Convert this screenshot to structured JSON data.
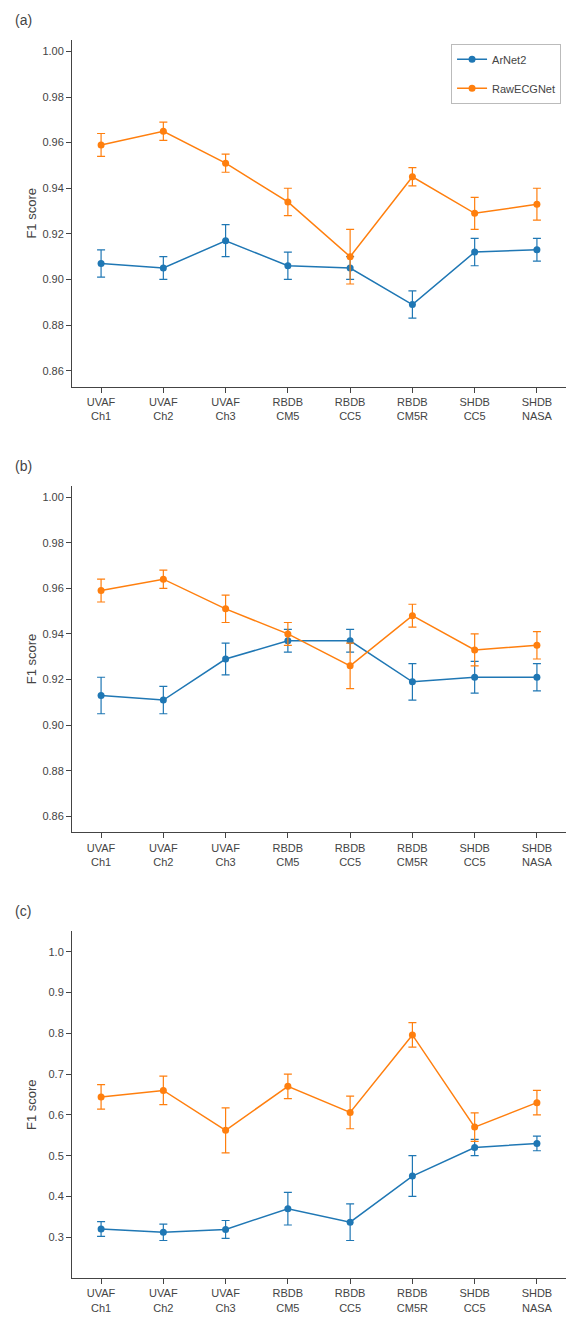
{
  "chart_data": [
    {
      "type": "line",
      "title": "(a)",
      "ylabel": "F1 score",
      "categories": [
        "UVAF\nCh1",
        "UVAF\nCh2",
        "UVAF\nCh3",
        "RBDB\nCM5",
        "RBDB\nCC5",
        "RBDB\nCM5R",
        "SHDB\nCC5",
        "SHDB\nNASA"
      ],
      "series": [
        {
          "name": "ArNet2",
          "color": "#1f77b4",
          "marker": "circle",
          "values": [
            0.907,
            0.905,
            0.917,
            0.906,
            0.905,
            0.889,
            0.912,
            0.913
          ],
          "error": [
            0.006,
            0.005,
            0.007,
            0.006,
            0.005,
            0.006,
            0.006,
            0.005
          ]
        },
        {
          "name": "RawECGNet",
          "color": "#ff7f0e",
          "marker": "circle",
          "values": [
            0.959,
            0.965,
            0.951,
            0.934,
            0.91,
            0.945,
            0.929,
            0.933
          ],
          "error": [
            0.005,
            0.004,
            0.004,
            0.006,
            0.012,
            0.004,
            0.007,
            0.007
          ]
        }
      ],
      "ylim": [
        0.853,
        1.005
      ],
      "yticks": [
        0.86,
        0.88,
        {
          "value": 0.9,
          "label": "0.90"
        },
        0.92,
        0.94,
        0.96,
        0.98,
        {
          "value": 1.0,
          "label": "1.00"
        }
      ],
      "grid": false,
      "legend": "upper right"
    },
    {
      "type": "line",
      "title": "(b)",
      "ylabel": "F1 score",
      "categories": [
        "UVAF\nCh1",
        "UVAF\nCh2",
        "UVAF\nCh3",
        "RBDB\nCM5",
        "RBDB\nCC5",
        "RBDB\nCM5R",
        "SHDB\nCC5",
        "SHDB\nNASA"
      ],
      "series": [
        {
          "name": "ArNet2",
          "color": "#1f77b4",
          "marker": "circle",
          "values": [
            0.913,
            0.911,
            0.929,
            0.937,
            0.937,
            0.919,
            0.921,
            0.921
          ],
          "error": [
            0.008,
            0.006,
            0.007,
            0.005,
            0.005,
            0.008,
            0.007,
            0.006
          ]
        },
        {
          "name": "RawECGNet",
          "color": "#ff7f0e",
          "marker": "circle",
          "values": [
            0.959,
            0.964,
            0.951,
            0.94,
            0.926,
            0.948,
            0.933,
            0.935
          ],
          "error": [
            0.005,
            0.004,
            0.006,
            0.005,
            0.01,
            0.005,
            0.007,
            0.006
          ]
        }
      ],
      "ylim": [
        0.853,
        1.005
      ],
      "yticks": [
        0.86,
        0.88,
        {
          "value": 0.9,
          "label": "0.90"
        },
        0.92,
        0.94,
        0.96,
        0.98,
        {
          "value": 1.0,
          "label": "1.00"
        }
      ],
      "grid": false
    },
    {
      "type": "line",
      "title": "(c)",
      "ylabel": "F1 score",
      "categories": [
        "UVAF\nCh1",
        "UVAF\nCh2",
        "UVAF\nCh3",
        "RBDB\nCM5",
        "RBDB\nCC5",
        "RBDB\nCM5R",
        "SHDB\nCC5",
        "SHDB\nNASA"
      ],
      "series": [
        {
          "name": "ArNet2",
          "color": "#1f77b4",
          "marker": "circle",
          "values": [
            0.32,
            0.312,
            0.319,
            0.37,
            0.337,
            0.45,
            0.52,
            0.53
          ],
          "error": [
            0.018,
            0.02,
            0.022,
            0.04,
            0.045,
            0.05,
            0.02,
            0.018
          ]
        },
        {
          "name": "RawECGNet",
          "color": "#ff7f0e",
          "marker": "circle",
          "values": [
            0.644,
            0.66,
            0.562,
            0.67,
            0.606,
            0.796,
            0.57,
            0.63
          ],
          "error": [
            0.03,
            0.035,
            0.055,
            0.03,
            0.04,
            0.03,
            0.035,
            0.03
          ]
        }
      ],
      "ylim": [
        0.2,
        1.05
      ],
      "yticks": [
        0.3,
        0.4,
        0.5,
        0.6,
        0.7,
        0.8,
        0.9,
        {
          "value": 1.0,
          "label": "1.0"
        }
      ],
      "grid": false
    }
  ]
}
